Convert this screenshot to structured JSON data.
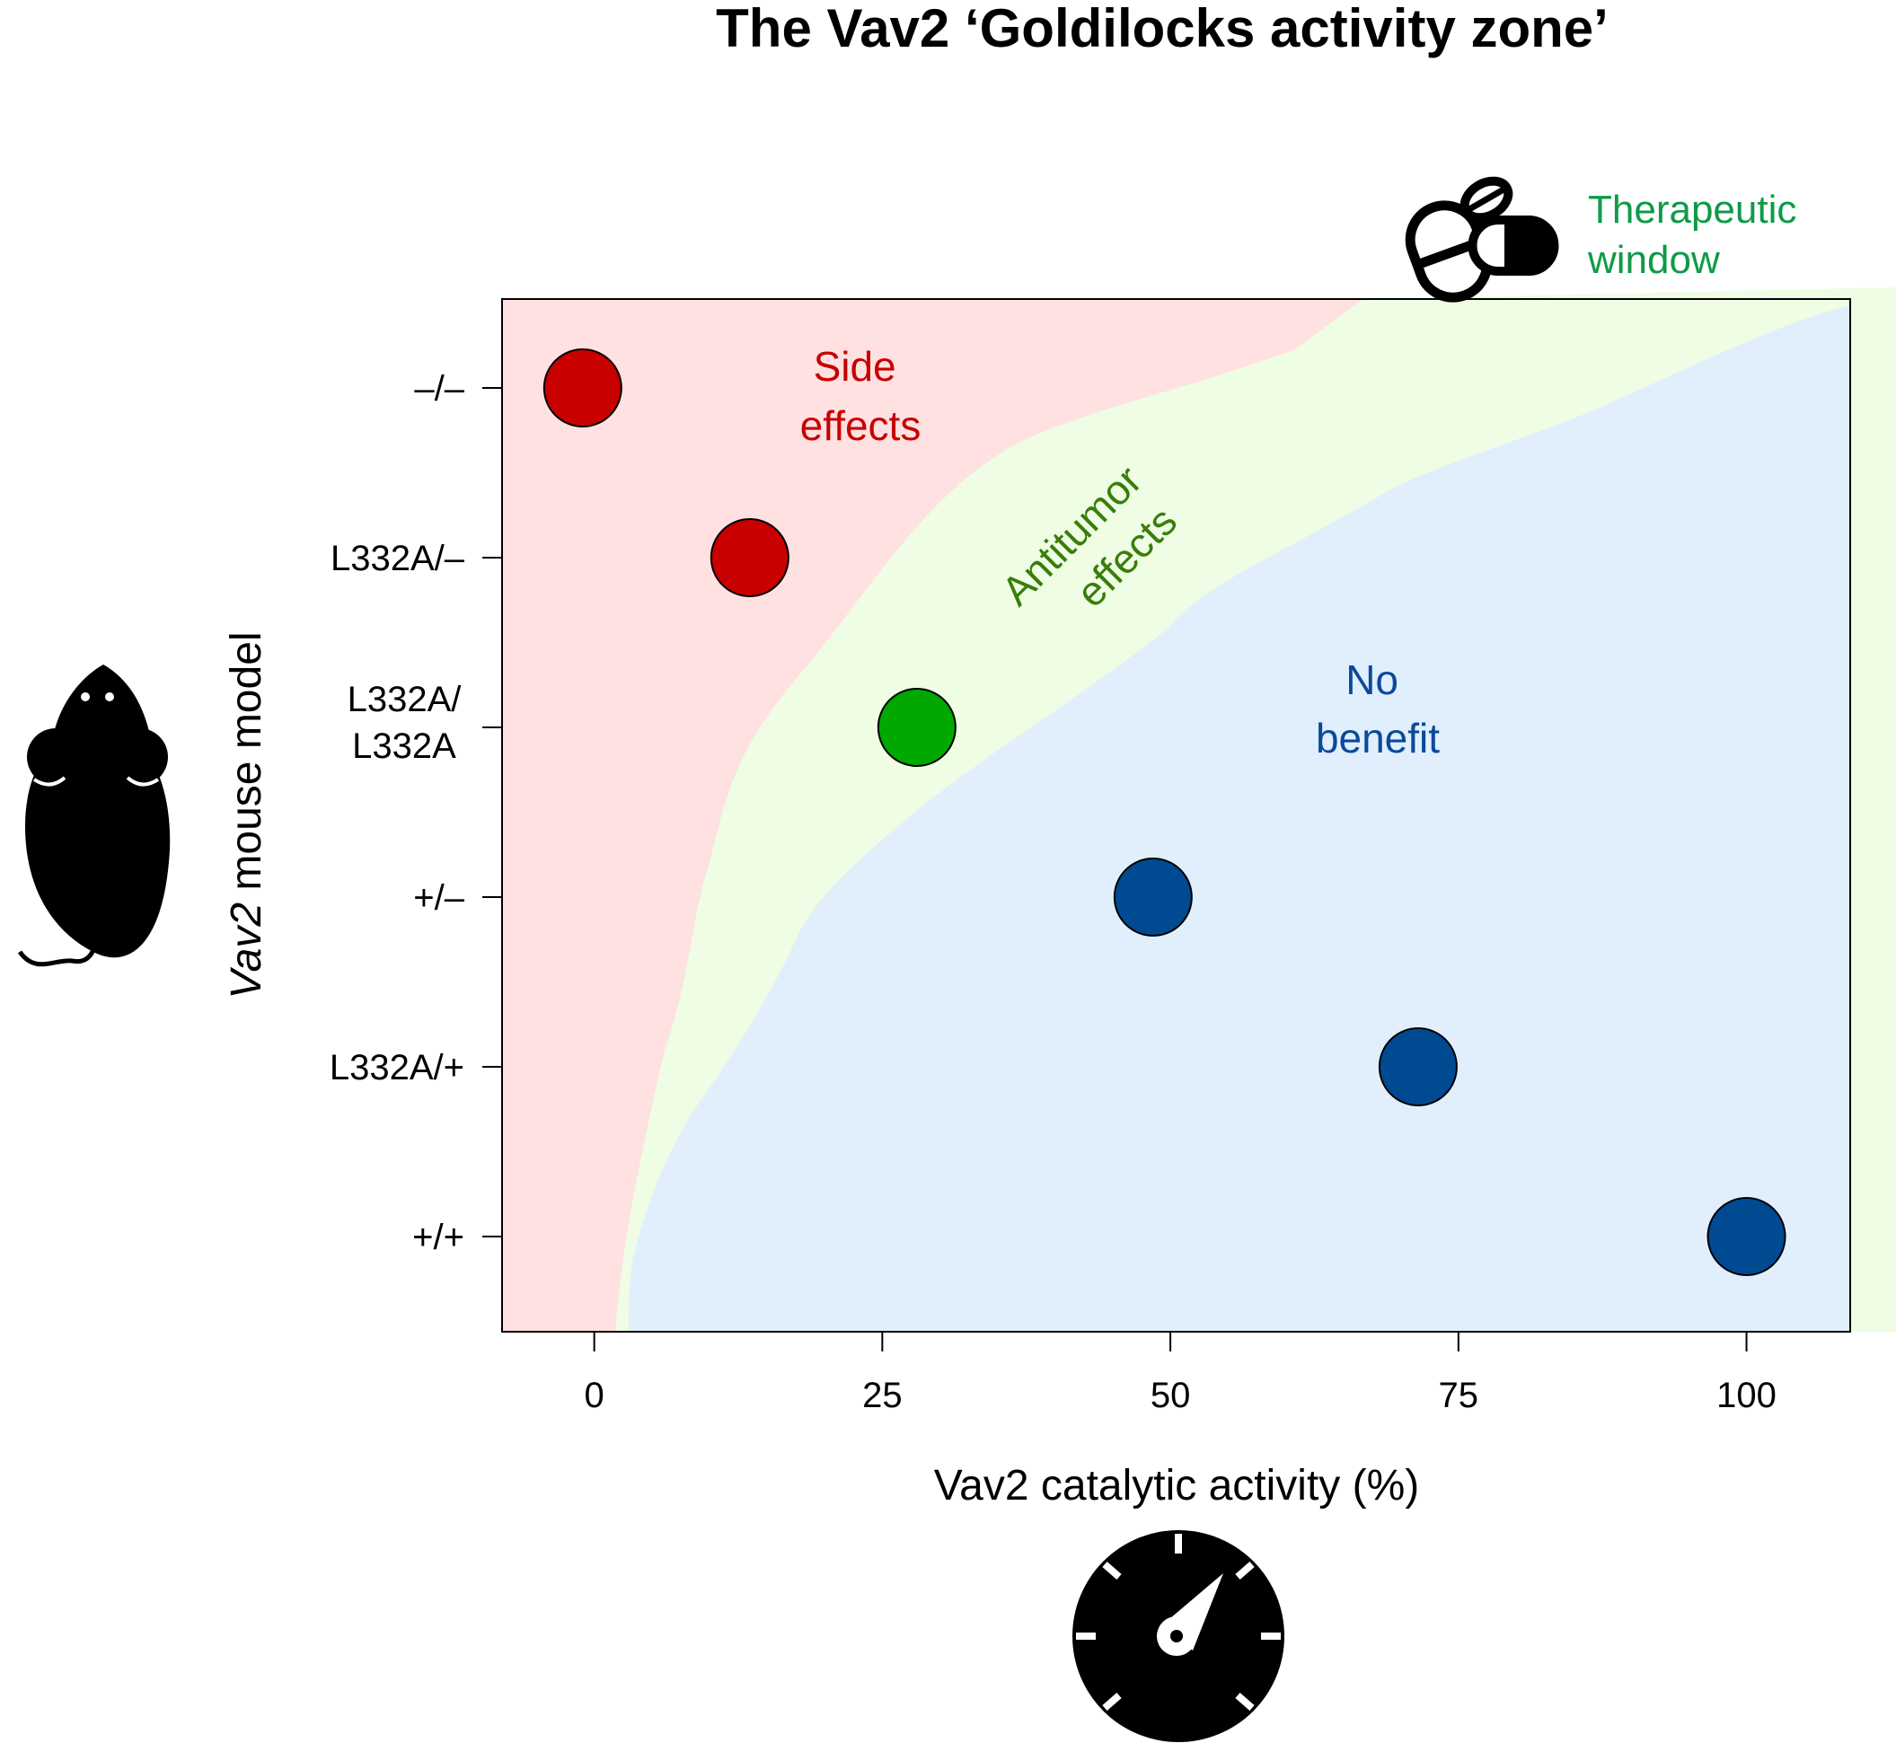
{
  "chart_data": {
    "type": "scatter",
    "title": "The Vav2 ‘Goldilocks activity zone’",
    "xlabel": "Vav2 catalytic activity (%)",
    "ylabel": "Vav2 mouse model",
    "ylabel_italic_part": "Vav2",
    "ylabel_rest": " mouse model",
    "x_ticks": [
      0,
      25,
      50,
      75,
      100
    ],
    "xlim": [
      -8,
      109
    ],
    "categories": [
      [
        "+/+"
      ],
      [
        "L332A/+"
      ],
      [
        "+/–"
      ],
      [
        "L332A/",
        "L332A"
      ],
      [
        "L332A/–"
      ],
      [
        "–/–"
      ]
    ],
    "points": [
      {
        "genotype": "–/–",
        "x": -1,
        "zone": "side"
      },
      {
        "genotype": "L332A/–",
        "x": 13.5,
        "zone": "side"
      },
      {
        "genotype": "L332A/L332A",
        "x": 28,
        "zone": "therapeutic"
      },
      {
        "genotype": "+/–",
        "x": 48.5,
        "zone": "none"
      },
      {
        "genotype": "L332A/+",
        "x": 71.5,
        "zone": "none"
      },
      {
        "genotype": "+/+",
        "x": 100,
        "zone": "none"
      }
    ],
    "regions": {
      "side": {
        "label": [
          "Side",
          "effects"
        ],
        "color": "#ffe1e1"
      },
      "therapeutic": {
        "label": [
          "Antitumor",
          "effects"
        ],
        "color": "#eefde4"
      },
      "none": {
        "label": [
          "No",
          "benefit"
        ],
        "color": "#e1eefc"
      }
    },
    "therapeutic_window_label": [
      "Therapeutic",
      "window"
    ],
    "colors": {
      "side_point": "#c80000",
      "therapeutic_point": "#00a800",
      "none_point": "#004a91",
      "side_text": "#c80000",
      "therapeutic_text": "#3a7d0a",
      "none_text": "#0a4a9a",
      "window_text": "#0f9a47"
    },
    "grid": false,
    "legend": "none",
    "icons": [
      "mouse-icon",
      "pills-icon",
      "gauge-icon"
    ]
  }
}
